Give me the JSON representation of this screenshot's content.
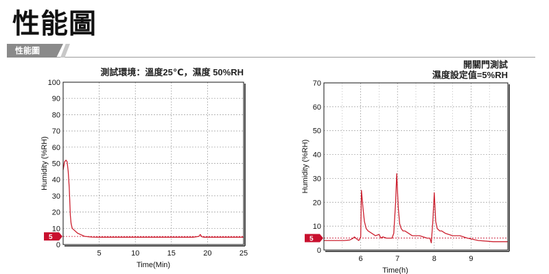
{
  "header": {
    "title": "性能圖",
    "section_tab": "性能圖"
  },
  "colors": {
    "line": "#cc1f2e",
    "marker": "#c8102e",
    "grid": "#9a9a9a",
    "frame": "#111111"
  },
  "chart_data": [
    {
      "type": "line",
      "title": "測試環境：溫度25℃，濕度 50%RH",
      "xlabel": "Time(Min)",
      "ylabel": "Humidity (%RH)",
      "xlim": [
        0,
        25
      ],
      "ylim": [
        0,
        100
      ],
      "xticks": [
        5,
        10,
        15,
        20,
        25
      ],
      "yticks": [
        0,
        10,
        20,
        30,
        40,
        50,
        60,
        70,
        80,
        90,
        100
      ],
      "grid": true,
      "reference": {
        "value": 5,
        "label": "5"
      },
      "series": [
        {
          "x": [
            0,
            0.2,
            0.4,
            0.55,
            0.7,
            0.85,
            1.0,
            1.1,
            1.25,
            1.5,
            2,
            2.5,
            3,
            4,
            5,
            8,
            12,
            15,
            18,
            18.8,
            19,
            19.2,
            19.5,
            20,
            22,
            25
          ],
          "y": [
            46,
            51,
            52,
            51,
            45,
            35,
            18,
            13,
            10,
            9,
            7,
            6,
            5,
            4.6,
            4.5,
            4.5,
            4.5,
            4.5,
            4.5,
            5.0,
            6.2,
            4.8,
            4.5,
            4.5,
            4.5,
            4.5
          ]
        }
      ]
    },
    {
      "type": "line",
      "title_lines": [
        "開關門測試",
        "濕度設定值=5%RH"
      ],
      "xlabel": "Time(h)",
      "ylabel": "Humidity (%RH)",
      "xlim": [
        5,
        10
      ],
      "ylim": [
        0,
        70
      ],
      "xticks": [
        6,
        7,
        8,
        9
      ],
      "yticks": [
        0,
        10,
        20,
        30,
        40,
        50,
        60,
        70
      ],
      "grid": true,
      "reference": {
        "value": 5,
        "label": "5"
      },
      "series": [
        {
          "x": [
            5,
            5.4,
            5.55,
            5.7,
            5.78,
            5.83,
            5.9,
            5.95,
            6.0,
            6.02,
            6.06,
            6.1,
            6.15,
            6.2,
            6.3,
            6.4,
            6.5,
            6.55,
            6.6,
            6.7,
            6.85,
            6.9,
            6.95,
            6.98,
            7.02,
            7.06,
            7.1,
            7.15,
            7.2,
            7.3,
            7.4,
            7.5,
            7.6,
            7.7,
            7.8,
            7.88,
            7.92,
            7.96,
            8.0,
            8.04,
            8.08,
            8.15,
            8.2,
            8.3,
            8.5,
            8.7,
            8.9,
            9.2,
            9.6,
            10
          ],
          "y": [
            4,
            4,
            4,
            4.2,
            4.8,
            5.5,
            4.5,
            4,
            5.5,
            25,
            18,
            12,
            9,
            8,
            7,
            6,
            6.5,
            5,
            5.5,
            5,
            5,
            7,
            20,
            32,
            18,
            11,
            9,
            8,
            8,
            7,
            6,
            6,
            6,
            5.5,
            5,
            5,
            3,
            12,
            24,
            12,
            9,
            8,
            8,
            7,
            6,
            6,
            5,
            4,
            3.5,
            3.5
          ]
        }
      ]
    }
  ]
}
